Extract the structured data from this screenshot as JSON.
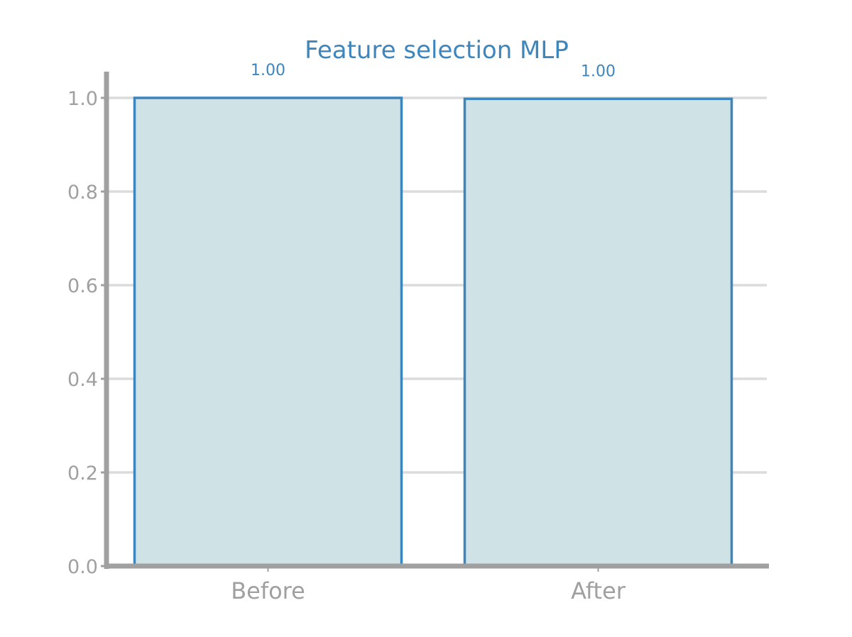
{
  "chart_data": {
    "type": "bar",
    "title": "Feature selection MLP",
    "categories": [
      "Before",
      "After"
    ],
    "values": [
      1.0,
      0.998
    ],
    "value_labels": [
      "1.00",
      "1.00"
    ],
    "xlabel": "",
    "ylabel": "",
    "ylim": [
      0,
      1.05
    ],
    "yticks": [
      "0.0",
      "0.2",
      "0.4",
      "0.6",
      "0.8",
      "1.0"
    ],
    "grid": "horizontal",
    "legend": "none"
  },
  "colors": {
    "bar_fill": "#cfe2e6",
    "bar_edge": "#3d85bd",
    "title": "#3d85bd",
    "axis": "#a0a0a0",
    "grid": "#dcdcdc"
  }
}
